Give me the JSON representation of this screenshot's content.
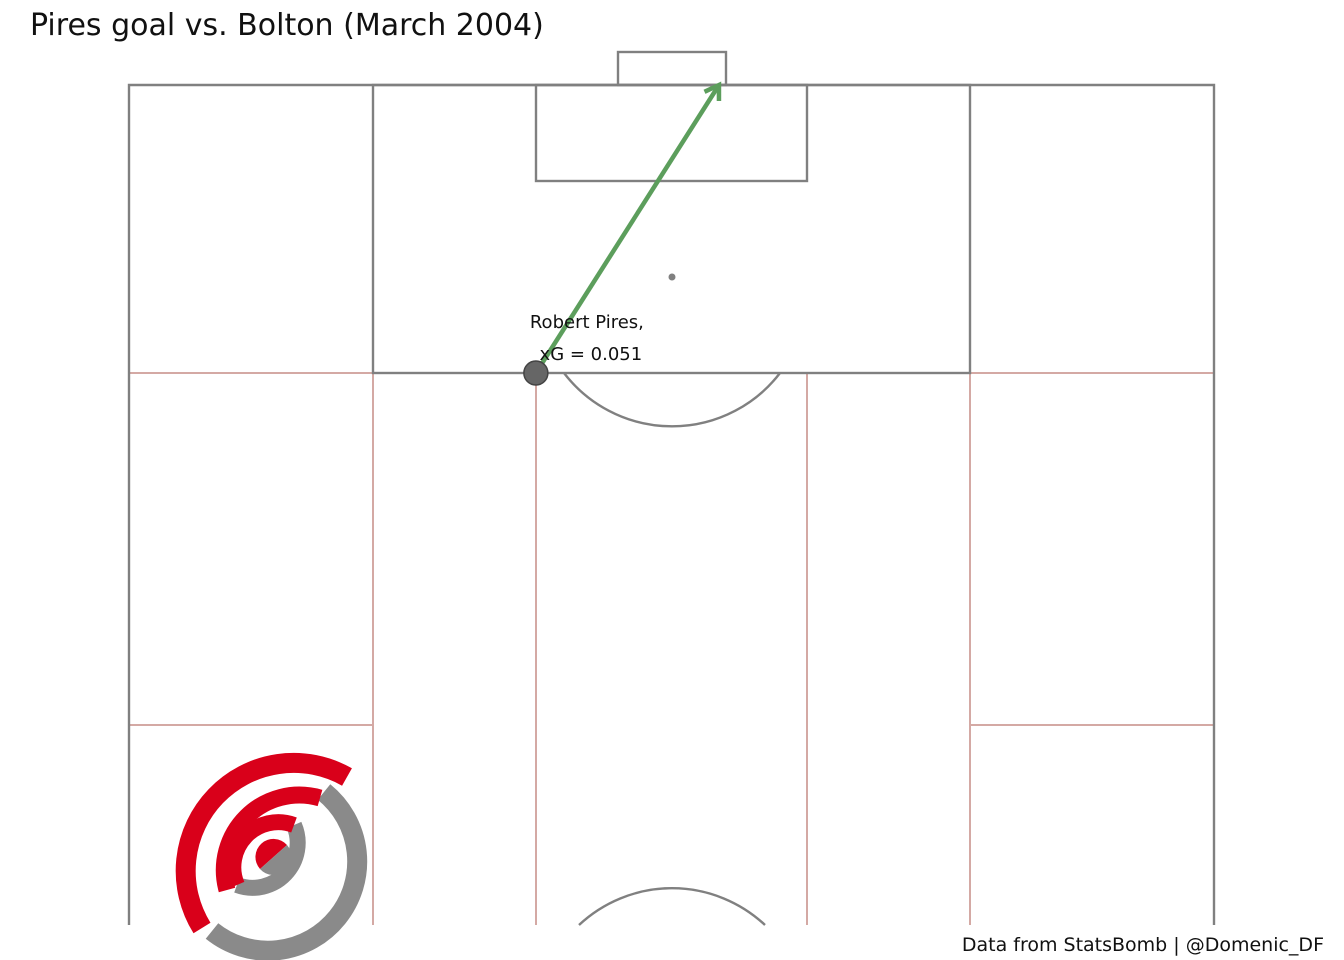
{
  "title": "Pires goal vs. Bolton (March 2004)",
  "footer": "Data from StatsBomb |  @Domenic_DF",
  "colors": {
    "pitch_line": "#808080",
    "zone_line": "#d4a9a4",
    "penalty_area_fill": "#f6f6f6",
    "goal_arrow": "#5c9e5c",
    "shot_marker": "#666666",
    "logo_red": "#d9001a",
    "logo_grey": "#8a8a8a"
  },
  "chart_data": {
    "type": "scatter",
    "title": "Pires goal vs. Bolton (March 2004)",
    "pitch": {
      "length": 120,
      "width": 80,
      "view": "vertical half pitch, attacking upward",
      "positional_zones": true
    },
    "shots": [
      {
        "player": "Robert Pires",
        "x": 102,
        "y": 30,
        "end_x": 120,
        "end_y": 43.5,
        "xG": 0.051,
        "outcome": "Goal",
        "label_line1": "Robert Pires,",
        "label_line2": "xG = 0.051"
      }
    ]
  },
  "logo": {
    "name": "statsbomb-logo-icon"
  }
}
